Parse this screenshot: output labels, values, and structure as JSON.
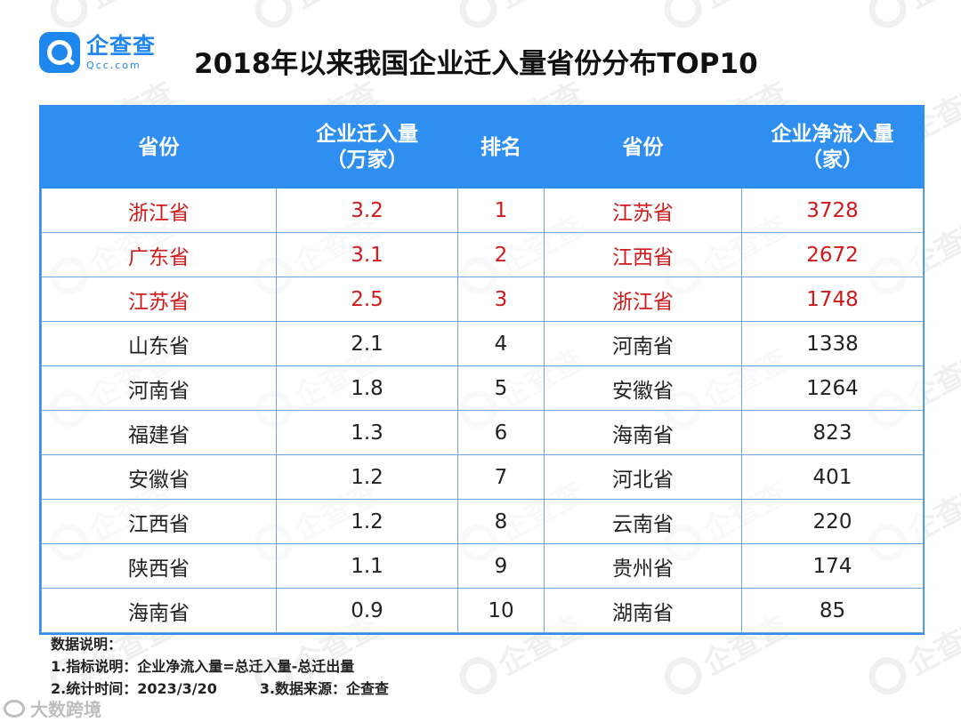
{
  "brand": {
    "name_cn": "企查查",
    "name_en": "Qcc.com"
  },
  "title": "2018年以来我国企业迁入量省份分布TOP10",
  "table": {
    "headers": [
      "省份",
      "企业迁入量\n（万家）",
      "排名",
      "省份",
      "企业净流入量\n（家）"
    ],
    "rows": [
      {
        "province_a": "浙江省",
        "inflow": "3.2",
        "rank": "1",
        "province_b": "江苏省",
        "net_inflow": "3728",
        "highlight": true
      },
      {
        "province_a": "广东省",
        "inflow": "3.1",
        "rank": "2",
        "province_b": "江西省",
        "net_inflow": "2672",
        "highlight": true
      },
      {
        "province_a": "江苏省",
        "inflow": "2.5",
        "rank": "3",
        "province_b": "浙江省",
        "net_inflow": "1748",
        "highlight": true
      },
      {
        "province_a": "山东省",
        "inflow": "2.1",
        "rank": "4",
        "province_b": "河南省",
        "net_inflow": "1338",
        "highlight": false
      },
      {
        "province_a": "河南省",
        "inflow": "1.8",
        "rank": "5",
        "province_b": "安徽省",
        "net_inflow": "1264",
        "highlight": false
      },
      {
        "province_a": "福建省",
        "inflow": "1.3",
        "rank": "6",
        "province_b": "海南省",
        "net_inflow": "823",
        "highlight": false
      },
      {
        "province_a": "安徽省",
        "inflow": "1.2",
        "rank": "7",
        "province_b": "河北省",
        "net_inflow": "401",
        "highlight": false
      },
      {
        "province_a": "江西省",
        "inflow": "1.2",
        "rank": "8",
        "province_b": "云南省",
        "net_inflow": "220",
        "highlight": false
      },
      {
        "province_a": "陕西省",
        "inflow": "1.1",
        "rank": "9",
        "province_b": "贵州省",
        "net_inflow": "174",
        "highlight": false
      },
      {
        "province_a": "海南省",
        "inflow": "0.9",
        "rank": "10",
        "province_b": "湖南省",
        "net_inflow": "85",
        "highlight": false
      }
    ]
  },
  "notes": {
    "heading": "数据说明：",
    "line1": "1.指标说明：企业净流入量=总迁入量-总迁出量",
    "line2a": "2.统计时间：2023/3/20",
    "line2b": "3.数据来源：企查查"
  },
  "credit": "大数跨境",
  "colors": {
    "accent": "#2f8ff0",
    "highlight": "#d0191a",
    "logo": "#1f86ee"
  },
  "icons": {
    "logo": "qcc-logo-icon",
    "credit": "credit-logo-icon",
    "watermark": "qcc-watermark-icon"
  }
}
